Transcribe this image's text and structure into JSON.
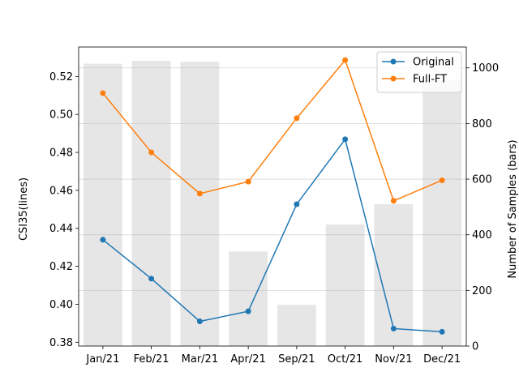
{
  "chart_data": {
    "type": "bar+line",
    "categories": [
      "Jan/21",
      "Feb/21",
      "Mar/21",
      "Apr/21",
      "Sep/21",
      "Oct/21",
      "Nov/21",
      "Dec/21"
    ],
    "bars": {
      "axis": "right",
      "values": [
        1015,
        1025,
        1022,
        340,
        148,
        437,
        510,
        955
      ],
      "color": "#e6e6e6"
    },
    "series": [
      {
        "name": "Original",
        "color": "#1f77b4",
        "values": [
          0.434,
          0.4135,
          0.391,
          0.3963,
          0.4527,
          0.4869,
          0.3872,
          0.3855
        ]
      },
      {
        "name": "Full-FT",
        "color": "#ff7f0e",
        "values": [
          0.5112,
          0.48,
          0.4583,
          0.4646,
          0.498,
          0.5286,
          0.4545,
          0.4653
        ]
      }
    ],
    "ylabel_left": "CSI35(lines)",
    "ylabel_right": "Number of Samples (bars)",
    "ylim_left": [
      0.378,
      0.5355
    ],
    "ylim_right": [
      0,
      1075
    ],
    "yticks_left": [
      0.38,
      0.4,
      0.42,
      0.44,
      0.46,
      0.48,
      0.5,
      0.52
    ],
    "yticks_left_labels": [
      "0.38",
      "0.40",
      "0.42",
      "0.44",
      "0.46",
      "0.48",
      "0.50",
      "0.52"
    ],
    "yticks_right": [
      0,
      200,
      400,
      600,
      800,
      1000
    ],
    "yticks_right_labels": [
      "0",
      "200",
      "400",
      "600",
      "800",
      "1000"
    ],
    "grid": "horizontal",
    "legend_position": "top-right"
  }
}
